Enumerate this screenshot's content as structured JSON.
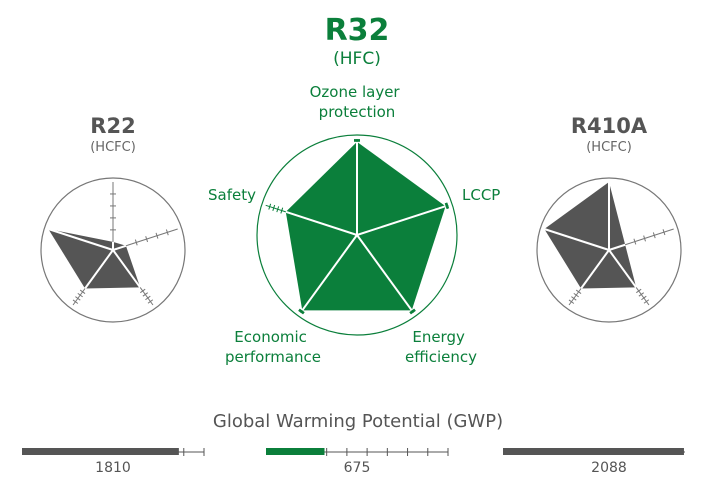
{
  "colors": {
    "green": "#0b7f3b",
    "gray": "#555555",
    "light_gray": "#777777",
    "ring": "#777777"
  },
  "center": {
    "title": "R32",
    "subtitle": "(HFC)",
    "axis_labels": [
      "Ozone layer\nprotection",
      "LCCP",
      "Energy\nefficiency",
      "Economic\nperformance",
      "Safety"
    ]
  },
  "left": {
    "title": "R22",
    "subtitle": "(HCFC)"
  },
  "right": {
    "title": "R410A",
    "subtitle": "(HCFC)"
  },
  "chart_data": {
    "type": "radar",
    "axes": [
      "Ozone layer protection",
      "LCCP",
      "Energy efficiency",
      "Economic performance",
      "Safety"
    ],
    "max": 1,
    "series": [
      {
        "name": "R22",
        "values": [
          0.12,
          0.2,
          0.68,
          0.7,
          1.0
        ]
      },
      {
        "name": "R32",
        "values": [
          0.97,
          0.97,
          0.97,
          0.97,
          0.78
        ]
      },
      {
        "name": "R410A",
        "values": [
          1.0,
          0.25,
          0.68,
          0.7,
          1.0
        ]
      }
    ]
  },
  "gwp": {
    "title": "Global Warming Potential (GWP)",
    "scale_max": 2100,
    "bars": [
      {
        "name": "R22",
        "value": 1810,
        "label": "1810"
      },
      {
        "name": "R32",
        "value": 675,
        "label": "675"
      },
      {
        "name": "R410A",
        "value": 2088,
        "label": "2088"
      }
    ]
  }
}
